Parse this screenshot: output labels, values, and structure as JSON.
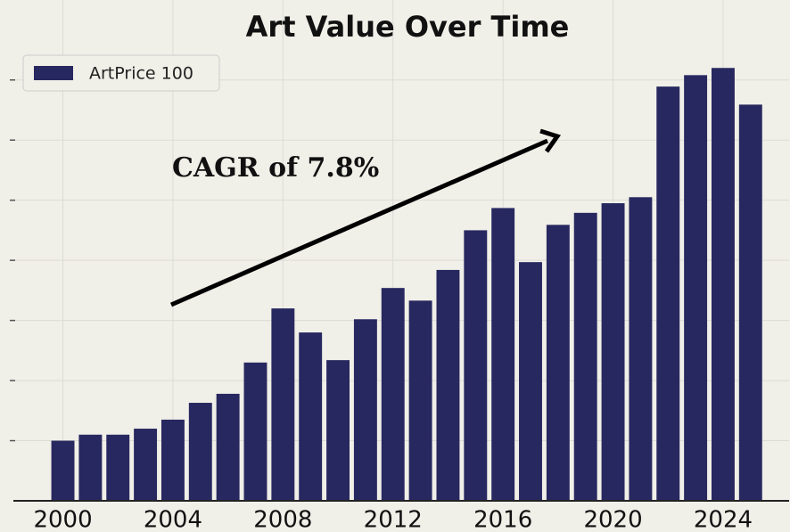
{
  "chart_data": {
    "type": "bar",
    "title": "Art Value Over Time",
    "annotation": "CAGR of 7.8%",
    "x": [
      2000,
      2001,
      2002,
      2003,
      2004,
      2005,
      2006,
      2007,
      2008,
      2009,
      2010,
      2011,
      2012,
      2013,
      2014,
      2015,
      2016,
      2017,
      2018,
      2019,
      2020,
      2021,
      2022,
      2023,
      2024,
      2025
    ],
    "series": [
      {
        "name": "ArtPrice 100",
        "color": "#282860",
        "values": [
          1.0,
          1.1,
          1.1,
          1.2,
          1.35,
          1.63,
          1.78,
          2.3,
          3.2,
          2.8,
          2.34,
          3.02,
          3.54,
          3.33,
          3.84,
          4.5,
          4.87,
          3.97,
          4.59,
          4.79,
          4.95,
          5.05,
          6.89,
          7.08,
          7.2,
          6.59
        ]
      }
    ],
    "xlim": [
      1998.2,
      2026.4
    ],
    "xticks": [
      2000,
      2004,
      2008,
      2012,
      2016,
      2020,
      2024
    ],
    "ylim": [
      0,
      7.5
    ],
    "yticks": [
      1,
      2,
      3,
      4,
      5,
      6,
      7
    ],
    "grid": true,
    "legend": "upper left"
  }
}
